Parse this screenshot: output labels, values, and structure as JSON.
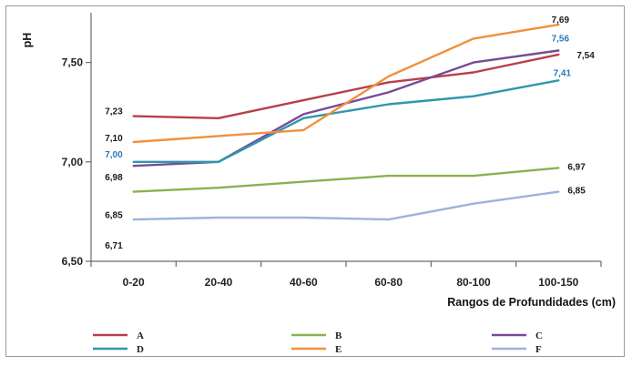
{
  "chart_data": {
    "type": "line",
    "ylabel": "pH",
    "xlabel": "Rangos de Profundidades (cm)",
    "categories": [
      "0-20",
      "20-40",
      "40-60",
      "60-80",
      "80-100",
      "100-150"
    ],
    "ylim": [
      6.5,
      7.75
    ],
    "yticks": [
      "6,50",
      "7,00",
      "7,50"
    ],
    "ytick_values": [
      6.5,
      7.0,
      7.5
    ],
    "grid": false,
    "legend_position": "bottom",
    "series": [
      {
        "name": "A",
        "color": "#b5404a",
        "values": [
          7.23,
          7.22,
          7.31,
          7.4,
          7.45,
          7.54
        ]
      },
      {
        "name": "B",
        "color": "#8bb14f",
        "values": [
          6.85,
          6.87,
          6.9,
          6.93,
          6.93,
          6.97
        ]
      },
      {
        "name": "C",
        "color": "#7a4a96",
        "values": [
          6.98,
          7.0,
          7.24,
          7.35,
          7.5,
          7.56
        ]
      },
      {
        "name": "D",
        "color": "#2f97ad",
        "values": [
          7.0,
          7.0,
          7.22,
          7.29,
          7.33,
          7.41
        ]
      },
      {
        "name": "E",
        "color": "#f0913f",
        "values": [
          7.1,
          7.13,
          7.16,
          7.43,
          7.62,
          7.69
        ]
      },
      {
        "name": "F",
        "color": "#9db3da",
        "values": [
          6.71,
          6.72,
          6.72,
          6.71,
          6.79,
          6.85
        ]
      }
    ],
    "data_labels": [
      {
        "text": "7,23",
        "color": "#1a1a1a",
        "cat": 0,
        "value": 7.23
      },
      {
        "text": "7,10",
        "color": "#1a1a1a",
        "cat": 0,
        "value": 7.1
      },
      {
        "text": "7,00",
        "color": "#2a79b8",
        "cat": 0,
        "value": 7.0
      },
      {
        "text": "6,98",
        "color": "#1a1a1a",
        "cat": 0,
        "value": 6.98
      },
      {
        "text": "6,85",
        "color": "#1a1a1a",
        "cat": 0,
        "value": 6.85
      },
      {
        "text": "6,71",
        "color": "#1a1a1a",
        "cat": 0,
        "value": 6.71
      },
      {
        "text": "7,69",
        "color": "#1a1a1a",
        "cat": 5,
        "value": 7.69
      },
      {
        "text": "7,56",
        "color": "#2a79b8",
        "cat": 5,
        "value": 7.56
      },
      {
        "text": "7,54",
        "color": "#1a1a1a",
        "cat": 5,
        "value": 7.54
      },
      {
        "text": "7,41",
        "color": "#2a79b8",
        "cat": 5,
        "value": 7.41
      },
      {
        "text": "6,97",
        "color": "#1a1a1a",
        "cat": 5,
        "value": 6.97
      },
      {
        "text": "6,85",
        "color": "#1a1a1a",
        "cat": 5,
        "value": 6.85
      }
    ]
  }
}
